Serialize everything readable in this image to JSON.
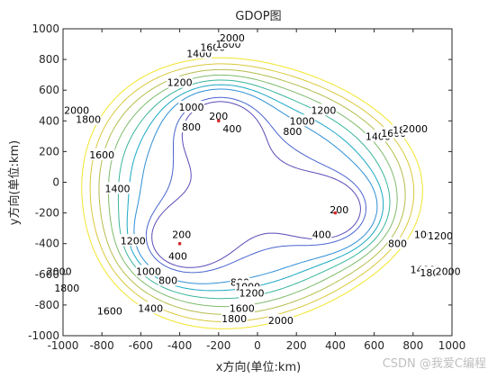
{
  "chart_data": {
    "type": "contour",
    "title": "GDOP图",
    "xlabel": "x方向(单位:km)",
    "ylabel": "y方向(单位:km)",
    "xlim": [
      -1000,
      1000
    ],
    "ylim": [
      -1000,
      1000
    ],
    "xticks": [
      -1000,
      -800,
      -600,
      -400,
      -200,
      0,
      200,
      400,
      600,
      800,
      1000
    ],
    "yticks": [
      -1000,
      -800,
      -600,
      -400,
      -200,
      0,
      200,
      400,
      600,
      800,
      1000
    ],
    "grid": false,
    "stations": [
      {
        "x": -200,
        "y": 400
      },
      {
        "x": -400,
        "y": -400
      },
      {
        "x": 400,
        "y": -200
      }
    ],
    "levels": [
      200,
      400,
      800,
      1000,
      1200,
      1400,
      1600,
      1800,
      2000
    ],
    "level_colors": {
      "200": "#5a4bb6",
      "400": "#4864cf",
      "800": "#2f8fd6",
      "1000": "#1aa8c4",
      "1200": "#3ab59a",
      "1400": "#7dbb6b",
      "1600": "#b4bd4c",
      "1800": "#dac83b",
      "2000": "#f2e52a"
    },
    "contour_labels": [
      {
        "text": "200",
        "x": -200,
        "y": 430
      },
      {
        "text": "400",
        "x": -130,
        "y": 350
      },
      {
        "text": "200",
        "x": -390,
        "y": -340
      },
      {
        "text": "200",
        "x": 420,
        "y": -180
      },
      {
        "text": "400",
        "x": -410,
        "y": -480
      },
      {
        "text": "400",
        "x": 330,
        "y": -340
      },
      {
        "text": "800",
        "x": -340,
        "y": 360
      },
      {
        "text": "800",
        "x": 180,
        "y": 330
      },
      {
        "text": "800",
        "x": -460,
        "y": -640
      },
      {
        "text": "800",
        "x": 720,
        "y": -400
      },
      {
        "text": "800",
        "x": -90,
        "y": -650
      },
      {
        "text": "1000",
        "x": -340,
        "y": 490
      },
      {
        "text": "1000",
        "x": -560,
        "y": -580
      },
      {
        "text": "1000",
        "x": 230,
        "y": 400
      },
      {
        "text": "1000",
        "x": 870,
        "y": -340
      },
      {
        "text": "1000",
        "x": -50,
        "y": -680
      },
      {
        "text": "1200",
        "x": -400,
        "y": 650
      },
      {
        "text": "1200",
        "x": -640,
        "y": -380
      },
      {
        "text": "1200",
        "x": 340,
        "y": 470
      },
      {
        "text": "1200",
        "x": 940,
        "y": -350
      },
      {
        "text": "1200",
        "x": -30,
        "y": -720
      },
      {
        "text": "1400",
        "x": -300,
        "y": 840
      },
      {
        "text": "1400",
        "x": -720,
        "y": -40
      },
      {
        "text": "1400",
        "x": 620,
        "y": 300
      },
      {
        "text": "1400",
        "x": 850,
        "y": -570
      },
      {
        "text": "1400",
        "x": -550,
        "y": -820
      },
      {
        "text": "1600",
        "x": -230,
        "y": 880
      },
      {
        "text": "1600",
        "x": -800,
        "y": 180
      },
      {
        "text": "1600",
        "x": 700,
        "y": 320
      },
      {
        "text": "1600",
        "x": -760,
        "y": -840
      },
      {
        "text": "1600",
        "x": -80,
        "y": -820
      },
      {
        "text": "1800",
        "x": -150,
        "y": 900
      },
      {
        "text": "1800",
        "x": -870,
        "y": 410
      },
      {
        "text": "1800",
        "x": 760,
        "y": 340
      },
      {
        "text": "1800",
        "x": -980,
        "y": -690
      },
      {
        "text": "1800",
        "x": -120,
        "y": -890
      },
      {
        "text": "1800",
        "x": 900,
        "y": -590
      },
      {
        "text": "2000",
        "x": -130,
        "y": 940
      },
      {
        "text": "2000",
        "x": -930,
        "y": 470
      },
      {
        "text": "2000",
        "x": 810,
        "y": 350
      },
      {
        "text": "2000",
        "x": -1020,
        "y": -580
      },
      {
        "text": "2000",
        "x": 120,
        "y": -900
      },
      {
        "text": "2000",
        "x": 980,
        "y": -580
      }
    ]
  },
  "watermark": "CSDN @我爱C编程"
}
